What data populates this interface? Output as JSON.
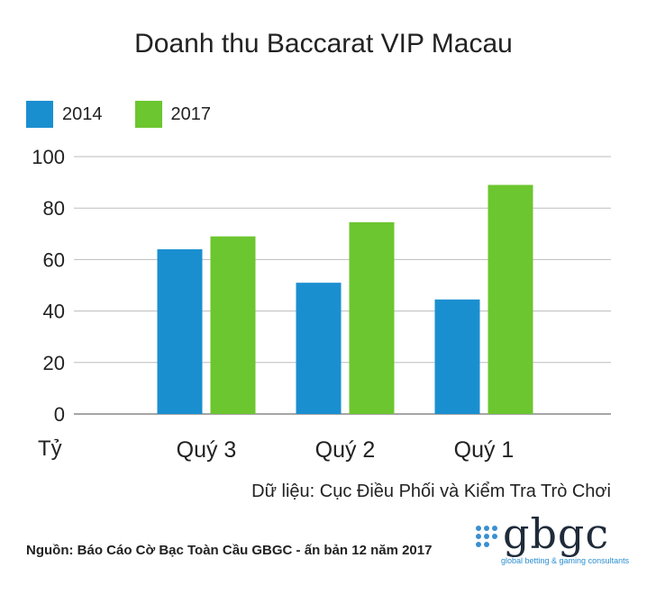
{
  "chart_data": {
    "type": "bar",
    "title": "Doanh thu Baccarat VIP Macau",
    "categories": [
      "Quý 3",
      "Quý 2",
      "Quý 1"
    ],
    "series": [
      {
        "name": "2014",
        "color": "#1a8fd0",
        "values": [
          64,
          51,
          44.5
        ]
      },
      {
        "name": "2017",
        "color": "#6cc62f",
        "values": [
          69,
          74.5,
          89
        ]
      }
    ],
    "ylabel": "Tỷ",
    "ylim": [
      0,
      100
    ],
    "yticks": [
      0,
      20,
      40,
      60,
      80,
      100
    ],
    "grid": true,
    "legend_position": "top-left"
  },
  "source_text": "Dữ liệu: Cục Điều Phối và Kiểm Tra Trò Chơi",
  "footnote": "Nguồn: Báo Cáo Cờ Bạc Toàn Cầu GBGC - ấn bản 12 năm 2017",
  "logo": {
    "name": "gbgc",
    "tagline": "global betting & gaming consultants"
  }
}
